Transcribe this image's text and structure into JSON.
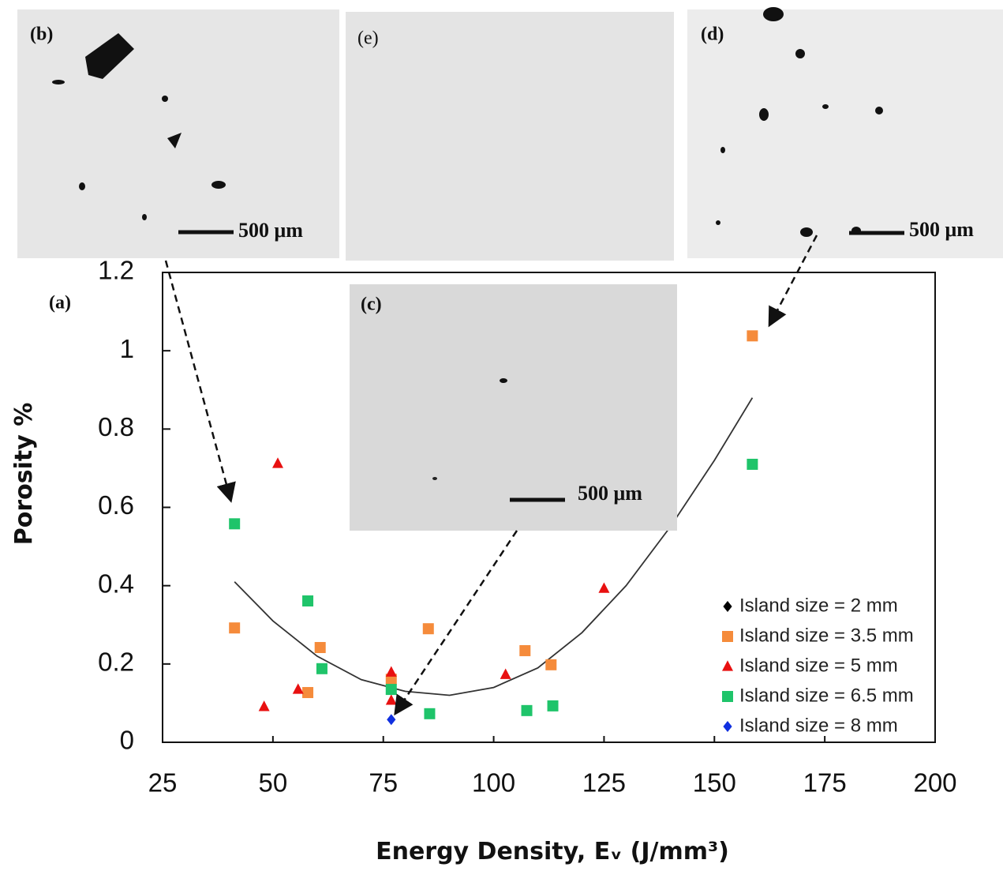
{
  "chart_data": {
    "type": "scatter",
    "annotations": [
      "(a)"
    ],
    "x_label": "Energy Density, Eᵥ (J/mm³)",
    "y_label": "Porosity %",
    "xlim": [
      25,
      200
    ],
    "xticks": [
      25,
      50,
      75,
      100,
      125,
      150,
      175,
      200
    ],
    "ylim": [
      0,
      1.2
    ],
    "yticks": [
      0,
      0.2,
      0.4,
      0.6,
      0.8,
      1,
      1.2
    ],
    "legend": "lower-right",
    "series": [
      {
        "name": "Island size = 2 mm",
        "color": "#000000",
        "marker": "diamond",
        "x": [],
        "values": []
      },
      {
        "name": "Island size = 3.5 mm",
        "color": "#f58b3b",
        "marker": "square",
        "x": [
          41.3,
          57.9,
          60.7,
          85.2,
          107.1,
          113,
          158.6,
          76.8
        ],
        "values": [
          0.292,
          0.127,
          0.242,
          0.29,
          0.234,
          0.198,
          1.038,
          0.161
        ]
      },
      {
        "name": "Island size = 5 mm",
        "color": "#e81010",
        "marker": "triangle",
        "x": [
          51.1,
          48,
          55.7,
          76.8,
          76.8,
          102.7,
          125
        ],
        "values": [
          0.712,
          0.091,
          0.135,
          0.179,
          0.107,
          0.173,
          0.393
        ]
      },
      {
        "name": "Island size = 6.5 mm",
        "color": "#1fc46a",
        "marker": "square",
        "x": [
          41.3,
          57.9,
          61.1,
          76.8,
          85.5,
          107.5,
          113.4,
          158.6
        ],
        "values": [
          0.558,
          0.361,
          0.188,
          0.135,
          0.073,
          0.081,
          0.093,
          0.71
        ]
      },
      {
        "name": "Island size = 8 mm",
        "color": "#1030e0",
        "marker": "diamond",
        "x": [
          76.8
        ],
        "values": [
          0.058
        ]
      }
    ],
    "trendline": {
      "color": "#333333",
      "x": [
        41.3,
        50,
        60,
        70,
        80,
        90,
        100,
        110,
        120,
        130,
        140,
        150,
        158.6
      ],
      "values": [
        0.41,
        0.31,
        0.22,
        0.16,
        0.13,
        0.12,
        0.14,
        0.19,
        0.28,
        0.4,
        0.55,
        0.72,
        0.88
      ]
    }
  },
  "panels": [
    {
      "label": "(b)",
      "scale": "500 μm"
    },
    {
      "label": "(e)"
    },
    {
      "label": "(d)",
      "scale": "500 μm"
    },
    {
      "label": "(c)",
      "scale": "500 μm"
    }
  ]
}
